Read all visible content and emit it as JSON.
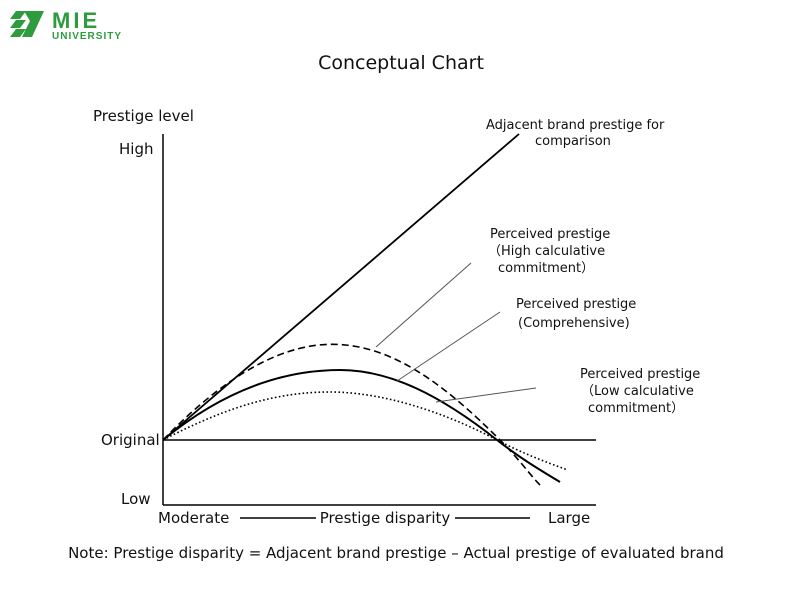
{
  "logo": {
    "line1": "MIE",
    "line2": "UNIVERSITY",
    "color": "#2e9b3e"
  },
  "title": "Conceptual Chart",
  "y_axis": {
    "title": "Prestige level",
    "high": "High",
    "original": "Original",
    "low": "Low"
  },
  "x_axis": {
    "left": "Moderate",
    "center": "Prestige disparity",
    "right": "Large"
  },
  "callouts": {
    "adjacent": {
      "line1": "Adjacent brand prestige for",
      "line2": "comparison"
    },
    "high_calc": {
      "line1": "Perceived prestige",
      "line2": "（High calculative",
      "line3": "commitment）"
    },
    "comprehensive": {
      "line1": "Perceived prestige",
      "line2": "(Comprehensive)"
    },
    "low_calc": {
      "line1": "Perceived prestige",
      "line2": "（Low calculative",
      "line3": "commitment）"
    }
  },
  "note": "Note: Prestige disparity = Adjacent brand prestige – Actual prestige of evaluated brand"
}
